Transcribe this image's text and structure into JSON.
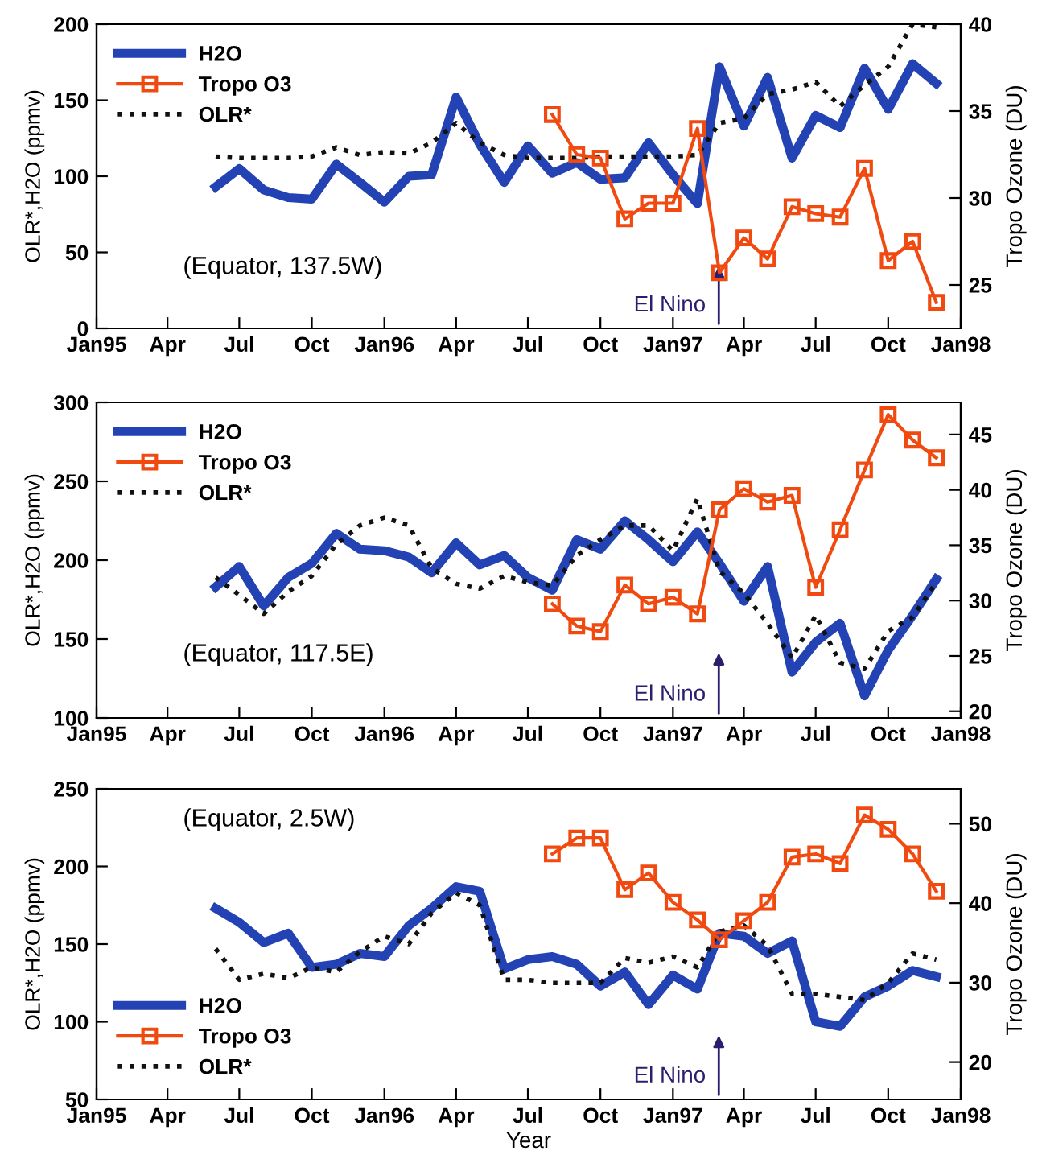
{
  "chart_data": [
    {
      "type": "line",
      "ylabel": "OLR*,H2O (ppmv)",
      "y2label": "Tropo Ozone (DU)",
      "x": [
        "1995-06",
        "1995-07",
        "1995-08",
        "1995-09",
        "1995-10",
        "1995-11",
        "1995-12",
        "1996-01",
        "1996-02",
        "1996-03",
        "1996-04",
        "1996-05",
        "1996-06",
        "1996-07",
        "1996-08",
        "1996-09",
        "1996-10",
        "1996-11",
        "1996-12",
        "1997-01",
        "1997-02",
        "1997-03",
        "1997-04",
        "1997-05",
        "1997-06",
        "1997-07",
        "1997-08",
        "1997-09",
        "1997-10",
        "1997-11",
        "1997-12"
      ],
      "xlim": [
        "1995-01",
        "1998-01"
      ],
      "xticks": [
        {
          "value": "1995-01",
          "label": "Jan95"
        },
        {
          "value": "1995-04",
          "label": "Apr"
        },
        {
          "value": "1995-07",
          "label": "Jul"
        },
        {
          "value": "1995-10",
          "label": "Oct"
        },
        {
          "value": "1996-01",
          "label": "Jan96"
        },
        {
          "value": "1996-04",
          "label": "Apr"
        },
        {
          "value": "1996-07",
          "label": "Jul"
        },
        {
          "value": "1996-10",
          "label": "Oct"
        },
        {
          "value": "1997-01",
          "label": "Jan97"
        },
        {
          "value": "1997-04",
          "label": "Apr"
        },
        {
          "value": "1997-07",
          "label": "Jul"
        },
        {
          "value": "1997-10",
          "label": "Oct"
        },
        {
          "value": "1998-01",
          "label": "Jan98"
        }
      ],
      "ylim": [
        0,
        200
      ],
      "yticks": [
        0,
        50,
        100,
        150,
        200
      ],
      "y2lim": [
        22.5,
        40
      ],
      "y2ticks": [
        25,
        30,
        35,
        40
      ],
      "legend": "top left",
      "grid": false,
      "series": [
        {
          "name": "H2O",
          "color": "#2343b5",
          "line_style": "solid",
          "marker": "none",
          "values": [
            93,
            105,
            91,
            86,
            85,
            108,
            96,
            83,
            100,
            101,
            152,
            121,
            96,
            120,
            102,
            109,
            98,
            99,
            122,
            101,
            82,
            172,
            133,
            165,
            112,
            140,
            132,
            171,
            144,
            174,
            161
          ]
        },
        {
          "name": "Tropo O3",
          "color": "#f04a10",
          "line_style": "solid",
          "marker": "square",
          "axis": "y2",
          "x": [
            "1996-08",
            "1996-09",
            "1996-10",
            "1996-11",
            "1996-12",
            "1997-01",
            "1997-02",
            "1997-03",
            "1997-04",
            "1997-05",
            "1997-06",
            "1997-07",
            "1997-08",
            "1997-09",
            "1997-10",
            "1997-11",
            "1997-12"
          ],
          "values": [
            34.8,
            32.5,
            32.3,
            28.8,
            29.7,
            29.7,
            34.0,
            25.7,
            27.7,
            26.5,
            29.5,
            29.1,
            28.9,
            31.7,
            26.4,
            27.5,
            24.0
          ]
        },
        {
          "name": "OLR*",
          "color": "#111111",
          "line_style": "dotted",
          "marker": "none",
          "values": [
            113,
            112,
            112,
            112,
            113,
            119,
            114,
            116,
            115,
            122,
            135,
            122,
            114,
            112,
            112,
            112,
            113,
            113,
            113,
            113,
            114,
            135,
            138,
            154,
            157,
            162,
            146,
            160,
            172,
            200,
            198
          ]
        }
      ],
      "annotations": [
        "(Equator, 137.5W)",
        "El Nino"
      ]
    },
    {
      "type": "line",
      "ylabel": "OLR*,H2O (ppmv)",
      "y2label": "Tropo Ozone (DU)",
      "x": [
        "1995-06",
        "1995-07",
        "1995-08",
        "1995-09",
        "1995-10",
        "1995-11",
        "1995-12",
        "1996-01",
        "1996-02",
        "1996-03",
        "1996-04",
        "1996-05",
        "1996-06",
        "1996-07",
        "1996-08",
        "1996-09",
        "1996-10",
        "1996-11",
        "1996-12",
        "1997-01",
        "1997-02",
        "1997-03",
        "1997-04",
        "1997-05",
        "1997-06",
        "1997-07",
        "1997-08",
        "1997-09",
        "1997-10",
        "1997-11",
        "1997-12"
      ],
      "xlim": [
        "1995-01",
        "1998-01"
      ],
      "xticks": [
        {
          "value": "1995-01",
          "label": "Jan95"
        },
        {
          "value": "1995-04",
          "label": "Apr"
        },
        {
          "value": "1995-07",
          "label": "Jul"
        },
        {
          "value": "1995-10",
          "label": "Oct"
        },
        {
          "value": "1996-01",
          "label": "Jan96"
        },
        {
          "value": "1996-04",
          "label": "Apr"
        },
        {
          "value": "1996-07",
          "label": "Jul"
        },
        {
          "value": "1996-10",
          "label": "Oct"
        },
        {
          "value": "1997-01",
          "label": "Jan97"
        },
        {
          "value": "1997-04",
          "label": "Apr"
        },
        {
          "value": "1997-07",
          "label": "Jul"
        },
        {
          "value": "1997-10",
          "label": "Oct"
        },
        {
          "value": "1998-01",
          "label": "Jan98"
        }
      ],
      "ylim": [
        100,
        300
      ],
      "yticks": [
        100,
        150,
        200,
        250,
        300
      ],
      "y2lim": [
        19.4,
        47.9
      ],
      "y2ticks": [
        20,
        25,
        30,
        35,
        40,
        45
      ],
      "legend": "top left",
      "grid": false,
      "series": [
        {
          "name": "H2O",
          "color": "#2343b5",
          "line_style": "solid",
          "marker": "none",
          "values": [
            183,
            196,
            171,
            189,
            198,
            217,
            207,
            206,
            202,
            192,
            211,
            197,
            203,
            189,
            181,
            213,
            207,
            225,
            213,
            199,
            218,
            198,
            174,
            196,
            129,
            148,
            160,
            114,
            143,
            165,
            188
          ]
        },
        {
          "name": "Tropo O3",
          "color": "#f04a10",
          "line_style": "solid",
          "marker": "square",
          "axis": "y2",
          "x": [
            "1996-08",
            "1996-09",
            "1996-10",
            "1996-11",
            "1996-12",
            "1997-01",
            "1997-02",
            "1997-03",
            "1997-04",
            "1997-05",
            "1997-06",
            "1997-07",
            "1997-08",
            "1997-09",
            "1997-10",
            "1997-11",
            "1997-12"
          ],
          "values": [
            29.7,
            27.7,
            27.2,
            31.4,
            29.7,
            30.3,
            28.8,
            38.2,
            40.1,
            38.9,
            39.5,
            31.2,
            36.4,
            41.8,
            46.8,
            44.5,
            42.9
          ]
        },
        {
          "name": "OLR*",
          "color": "#111111",
          "line_style": "dotted",
          "marker": "none",
          "values": [
            189,
            178,
            166,
            180,
            190,
            210,
            222,
            227,
            222,
            195,
            185,
            182,
            190,
            186,
            184,
            203,
            213,
            222,
            222,
            206,
            239,
            193,
            179,
            160,
            138,
            165,
            135,
            131,
            155,
            164,
            186
          ]
        }
      ],
      "annotations": [
        "(Equator, 117.5E)",
        "El Nino"
      ]
    },
    {
      "type": "line",
      "xlabel": "Year",
      "ylabel": "OLR*,H2O (ppmv)",
      "y2label": "Tropo Ozone (DU)",
      "x": [
        "1995-06",
        "1995-07",
        "1995-08",
        "1995-09",
        "1995-10",
        "1995-11",
        "1995-12",
        "1996-01",
        "1996-02",
        "1996-03",
        "1996-04",
        "1996-05",
        "1996-06",
        "1996-07",
        "1996-08",
        "1996-09",
        "1996-10",
        "1996-11",
        "1996-12",
        "1997-01",
        "1997-02",
        "1997-03",
        "1997-04",
        "1997-05",
        "1997-06",
        "1997-07",
        "1997-08",
        "1997-09",
        "1997-10",
        "1997-11",
        "1997-12"
      ],
      "xlim": [
        "1995-01",
        "1998-01"
      ],
      "xticks": [
        {
          "value": "1995-01",
          "label": "Jan95"
        },
        {
          "value": "1995-04",
          "label": "Apr"
        },
        {
          "value": "1995-07",
          "label": "Jul"
        },
        {
          "value": "1995-10",
          "label": "Oct"
        },
        {
          "value": "1996-01",
          "label": "Jan96"
        },
        {
          "value": "1996-04",
          "label": "Apr"
        },
        {
          "value": "1996-07",
          "label": "Jul"
        },
        {
          "value": "1996-10",
          "label": "Oct"
        },
        {
          "value": "1997-01",
          "label": "Jan97"
        },
        {
          "value": "1997-04",
          "label": "Apr"
        },
        {
          "value": "1997-07",
          "label": "Jul"
        },
        {
          "value": "1997-10",
          "label": "Oct"
        },
        {
          "value": "1998-01",
          "label": "Jan98"
        }
      ],
      "ylim": [
        50,
        250
      ],
      "yticks": [
        50,
        100,
        150,
        200,
        250
      ],
      "y2lim": [
        15.3,
        54.4
      ],
      "y2ticks": [
        20,
        30,
        40,
        50
      ],
      "legend": "bottom left",
      "grid": false,
      "series": [
        {
          "name": "H2O",
          "color": "#2343b5",
          "line_style": "solid",
          "marker": "none",
          "values": [
            173,
            164,
            151,
            157,
            135,
            137,
            144,
            142,
            162,
            173,
            187,
            184,
            134,
            140,
            142,
            137,
            123,
            132,
            111,
            130,
            121,
            157,
            155,
            144,
            152,
            100,
            97,
            116,
            123,
            133,
            129
          ]
        },
        {
          "name": "Tropo O3",
          "color": "#f04a10",
          "line_style": "solid",
          "marker": "square",
          "axis": "y2",
          "x": [
            "1996-08",
            "1996-09",
            "1996-10",
            "1996-11",
            "1996-12",
            "1997-01",
            "1997-02",
            "1997-03",
            "1997-04",
            "1997-05",
            "1997-06",
            "1997-07",
            "1997-08",
            "1997-09",
            "1997-10",
            "1997-11",
            "1997-12"
          ],
          "values": [
            46.2,
            48.2,
            48.2,
            41.7,
            43.8,
            40.1,
            37.9,
            35.4,
            37.8,
            40.1,
            45.8,
            46.2,
            45.0,
            51.1,
            49.3,
            46.2,
            41.5
          ]
        },
        {
          "name": "OLR*",
          "color": "#111111",
          "line_style": "dotted",
          "marker": "none",
          "values": [
            147,
            127,
            131,
            128,
            135,
            132,
            145,
            155,
            150,
            170,
            183,
            175,
            127,
            127,
            125,
            125,
            125,
            141,
            138,
            142,
            135,
            158,
            162,
            149,
            118,
            118,
            116,
            114,
            125,
            144,
            140
          ]
        }
      ],
      "annotations": [
        "(Equator, 2.5W)",
        "El Nino"
      ]
    }
  ]
}
